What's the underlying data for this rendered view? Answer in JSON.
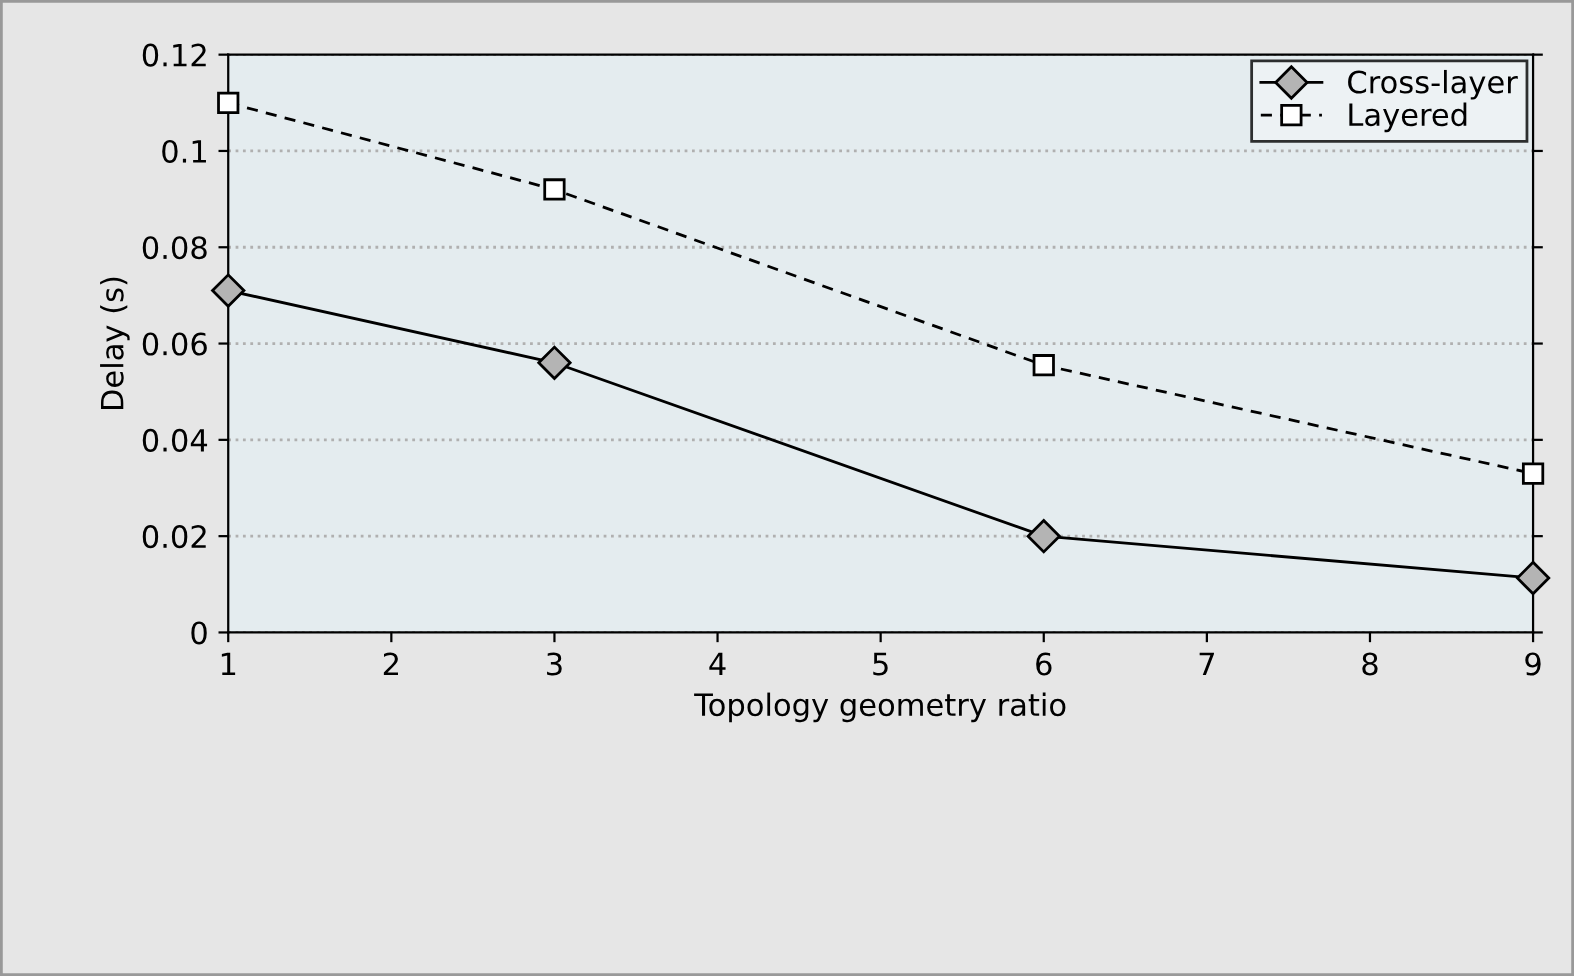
{
  "chart_data": {
    "type": "line",
    "xlabel": "Topology geometry ratio",
    "ylabel": "Delay (s)",
    "x": [
      1,
      3,
      6,
      9
    ],
    "series": [
      {
        "name": "Cross-layer",
        "color": "#000000",
        "values": [
          0.071,
          0.056,
          0.02,
          0.0113
        ],
        "marker": "diamond",
        "line_style": "solid"
      },
      {
        "name": "Layered",
        "color": "#000000",
        "values": [
          0.11,
          0.092,
          0.0555,
          0.033
        ],
        "marker": "square",
        "line_style": "dashed"
      }
    ],
    "xlim": [
      1,
      9
    ],
    "xticks": [
      1,
      2,
      3,
      4,
      5,
      6,
      7,
      8,
      9
    ],
    "ylim": [
      0,
      0.12
    ],
    "yticks": [
      0,
      0.02,
      0.04,
      0.06,
      0.08,
      {
        "value": 0.1,
        "label": "0.1"
      },
      0.12
    ],
    "grid": "y",
    "legend": "top right"
  }
}
